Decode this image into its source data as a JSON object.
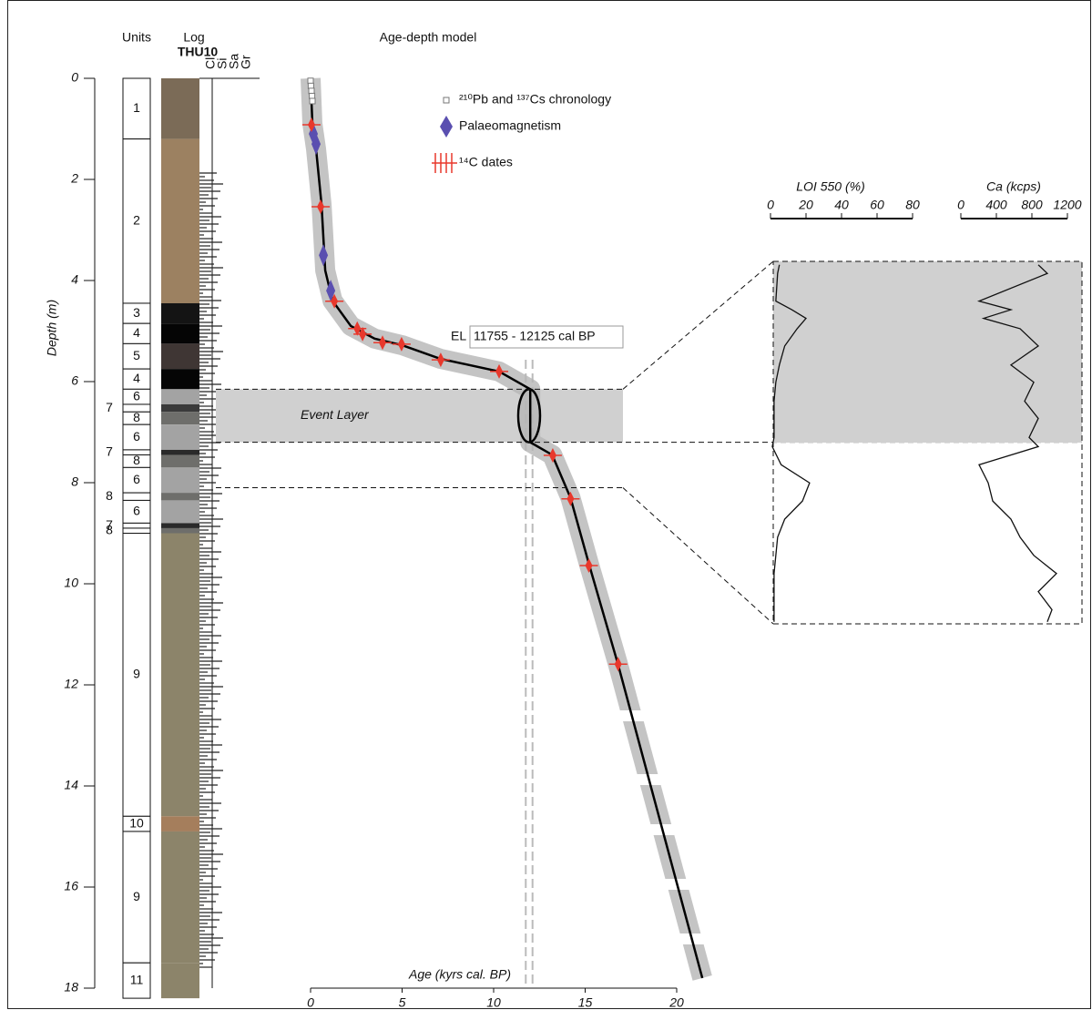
{
  "chart_data": [
    {
      "type": "lithology",
      "units_header": "Units",
      "log_header": "Log",
      "core": "THU10",
      "ylabel": "Depth (m)",
      "ylim": [
        0,
        18
      ],
      "yticks": [
        0,
        2,
        4,
        6,
        8,
        10,
        12,
        14,
        16,
        18
      ],
      "grain_size_labels": [
        "Cl",
        "Si",
        "Sa",
        "Gr"
      ],
      "units": [
        {
          "label": "1",
          "top": 0,
          "bottom": 1.2,
          "color": "#7b6b57"
        },
        {
          "label": "2",
          "top": 1.2,
          "bottom": 4.45,
          "color": "#9c8161"
        },
        {
          "label": "3",
          "top": 4.45,
          "bottom": 4.85,
          "color": "#141414"
        },
        {
          "label": "4",
          "top": 4.85,
          "bottom": 5.25,
          "color": "#050505"
        },
        {
          "label": "5",
          "top": 5.25,
          "bottom": 5.75,
          "color": "#3f3634"
        },
        {
          "label": "4",
          "top": 5.75,
          "bottom": 6.15,
          "color": "#050505"
        },
        {
          "label": "6",
          "top": 6.15,
          "bottom": 6.45,
          "color": "#a3a3a3"
        },
        {
          "label": "7",
          "top": 6.45,
          "bottom": 6.6,
          "color": "#3a3a3a",
          "outside": true
        },
        {
          "label": "8",
          "top": 6.6,
          "bottom": 6.85,
          "color": "#6e6e6b"
        },
        {
          "label": "6",
          "top": 6.85,
          "bottom": 7.35,
          "color": "#a3a3a3"
        },
        {
          "label": "7",
          "top": 7.35,
          "bottom": 7.45,
          "color": "#2a2a2a",
          "outside": true
        },
        {
          "label": "8",
          "top": 7.45,
          "bottom": 7.7,
          "color": "#6e6e6b"
        },
        {
          "label": "6",
          "top": 7.7,
          "bottom": 8.2,
          "color": "#a3a3a3"
        },
        {
          "label": "8",
          "top": 8.2,
          "bottom": 8.35,
          "color": "#6e6e6b",
          "outside": true
        },
        {
          "label": "6",
          "top": 8.35,
          "bottom": 8.8,
          "color": "#a3a3a3"
        },
        {
          "label": "7",
          "top": 8.8,
          "bottom": 8.9,
          "color": "#2a2a2a",
          "outside": true
        },
        {
          "label": "8",
          "top": 8.9,
          "bottom": 9.0,
          "color": "#6e6e6b",
          "outside": true
        },
        {
          "label": "9",
          "top": 9.0,
          "bottom": 14.6,
          "color": "#8c846a"
        },
        {
          "label": "10",
          "top": 14.6,
          "bottom": 14.9,
          "color": "#a57e5c"
        },
        {
          "label": "9",
          "top": 14.9,
          "bottom": 17.5,
          "color": "#8c846a"
        },
        {
          "label": "11",
          "top": 17.5,
          "bottom": 18.2,
          "color": "#8c846a"
        }
      ]
    },
    {
      "type": "scatter",
      "title": "Age-depth model",
      "xlabel": "Age (kyrs cal. BP)",
      "xlim": [
        0,
        20
      ],
      "xticks": [
        0,
        5,
        10,
        15,
        20
      ],
      "series": [
        {
          "name": "²¹⁰Pb and ¹³⁷Cs chronology",
          "color": "#777777",
          "marker": "square",
          "x": [
            0,
            0.02,
            0.05,
            0.08,
            0.1
          ],
          "y": [
            0.05,
            0.15,
            0.25,
            0.35,
            0.45
          ]
        },
        {
          "name": "Palaeomagnetism",
          "color": "#5a4fb0",
          "marker": "diamond",
          "x": [
            0.15,
            0.3,
            0.7,
            1.1
          ],
          "y": [
            1.1,
            1.3,
            3.5,
            4.2
          ]
        },
        {
          "name": "¹⁴C dates",
          "color": "#e8382c",
          "marker": "cross",
          "x": [
            0.05,
            0.55,
            1.3,
            2.55,
            2.84,
            3.93,
            4.97,
            7.11,
            10.3,
            13.23,
            14.2,
            15.2,
            16.8
          ],
          "y": [
            0.92,
            2.54,
            4.41,
            4.95,
            5.06,
            5.23,
            5.26,
            5.57,
            5.8,
            7.46,
            8.32,
            9.64,
            11.59
          ]
        }
      ],
      "model": {
        "x": [
          0,
          0.1,
          0.3,
          0.6,
          0.8,
          1.2,
          2.2,
          3.5,
          5,
          7.1,
          10.3,
          12,
          12,
          13.2,
          14.2,
          15.2,
          16.8,
          21.4
        ],
        "y": [
          0,
          0.9,
          1.4,
          2.5,
          3.8,
          4.4,
          4.9,
          5.15,
          5.28,
          5.55,
          5.8,
          6.15,
          7.2,
          7.45,
          8.3,
          9.6,
          11.6,
          17.8
        ]
      },
      "event_layer": {
        "label": "Event Layer",
        "top": 6.15,
        "bottom": 7.2
      },
      "event_age": {
        "prefix": "EL",
        "label": "11755 - 12125 cal BP",
        "values": [
          11.755,
          12.125
        ]
      }
    },
    {
      "type": "line",
      "xlabel": "LOI 550 (%)",
      "xlim": [
        0,
        80
      ],
      "xticks": [
        0,
        20,
        40,
        60,
        80
      ],
      "ylim": [
        6.15,
        8.1
      ],
      "color": "#111111",
      "depth": [
        6.17,
        6.22,
        6.38,
        6.43,
        6.48,
        6.54,
        6.64,
        6.75,
        6.85,
        6.96,
        7.06,
        7.17,
        7.22,
        7.31,
        7.4,
        7.49,
        7.58,
        7.67,
        7.76,
        7.85,
        7.94,
        8.03,
        8.09
      ],
      "values": [
        5,
        4,
        3,
        12,
        20,
        15,
        8,
        5,
        3,
        2,
        2,
        2,
        1,
        6,
        22,
        18,
        8,
        4,
        3,
        2,
        2,
        2,
        2
      ]
    },
    {
      "type": "line",
      "xlabel": "Ca (kcps)",
      "xlim": [
        0,
        1200
      ],
      "xticks": [
        0,
        400,
        800,
        1200
      ],
      "ylim": [
        6.15,
        8.1
      ],
      "color": "#111111",
      "depth": [
        6.17,
        6.22,
        6.38,
        6.43,
        6.48,
        6.54,
        6.64,
        6.75,
        6.85,
        6.96,
        7.06,
        7.17,
        7.22,
        7.31,
        7.4,
        7.49,
        7.58,
        7.67,
        7.76,
        7.85,
        7.94,
        8.03,
        8.09
      ],
      "values": [
        872,
        974,
        205,
        564,
        256,
        667,
        872,
        564,
        821,
        718,
        872,
        769,
        872,
        205,
        308,
        359,
        564,
        667,
        821,
        1077,
        872,
        1026,
        974
      ]
    }
  ]
}
